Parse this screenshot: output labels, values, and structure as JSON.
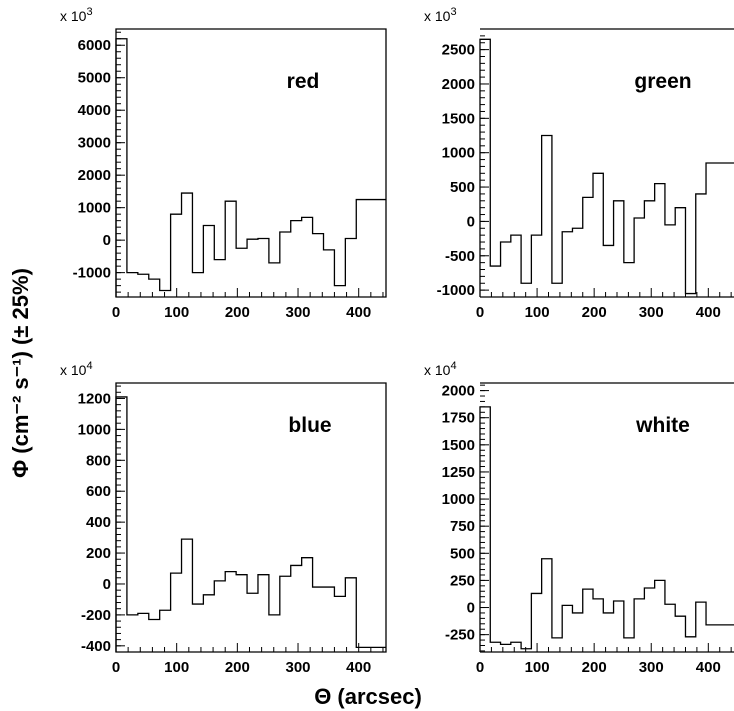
{
  "figure": {
    "xlabel": "Θ (arcsec)",
    "ylabel": "Φ (cm⁻² s⁻¹)  (± 25%)"
  },
  "chart_data": [
    {
      "type": "histogram",
      "label": "red",
      "scale": "x 10",
      "scale_exp": "3",
      "xlim": [
        0,
        445
      ],
      "ylim": [
        -1750,
        6500
      ],
      "xticks": [
        0,
        100,
        200,
        300,
        400
      ],
      "yticks": [
        -1000,
        0,
        1000,
        2000,
        3000,
        4000,
        5000,
        6000
      ],
      "bin_edges": [
        0,
        18,
        36,
        54,
        72,
        90,
        108,
        126,
        144,
        162,
        180,
        198,
        216,
        234,
        252,
        270,
        288,
        306,
        324,
        342,
        360,
        378,
        396,
        414,
        432,
        445
      ],
      "values": [
        6200,
        -1000,
        -1050,
        -1200,
        -1550,
        800,
        1450,
        -1000,
        450,
        -600,
        1200,
        -250,
        30,
        50,
        -700,
        250,
        600,
        700,
        200,
        -300,
        -1400,
        50,
        1250,
        1250,
        1250
      ]
    },
    {
      "type": "histogram",
      "label": "green",
      "scale": "x 10",
      "scale_exp": "3",
      "xlim": [
        0,
        445
      ],
      "ylim": [
        -1100,
        2800
      ],
      "xticks": [
        0,
        100,
        200,
        300,
        400
      ],
      "yticks": [
        -1000,
        -500,
        0,
        500,
        1000,
        1500,
        2000,
        2500
      ],
      "bin_edges": [
        0,
        18,
        36,
        54,
        72,
        90,
        108,
        126,
        144,
        162,
        180,
        198,
        216,
        234,
        252,
        270,
        288,
        306,
        324,
        342,
        360,
        378,
        396,
        414,
        432,
        445
      ],
      "values": [
        2650,
        -650,
        -300,
        -200,
        -900,
        -200,
        1250,
        -900,
        -150,
        -100,
        350,
        700,
        -350,
        300,
        -600,
        50,
        300,
        550,
        -50,
        200,
        -1050,
        400,
        850,
        850,
        850
      ]
    },
    {
      "type": "histogram",
      "label": "blue",
      "scale": "x 10",
      "scale_exp": "4",
      "xlim": [
        0,
        445
      ],
      "ylim": [
        -440,
        1300
      ],
      "xticks": [
        0,
        100,
        200,
        300,
        400
      ],
      "yticks": [
        -400,
        -200,
        0,
        200,
        400,
        600,
        800,
        1000,
        1200
      ],
      "bin_edges": [
        0,
        18,
        36,
        54,
        72,
        90,
        108,
        126,
        144,
        162,
        180,
        198,
        216,
        234,
        252,
        270,
        288,
        306,
        324,
        342,
        360,
        378,
        396,
        414,
        432,
        445
      ],
      "values": [
        1210,
        -200,
        -190,
        -230,
        -170,
        70,
        290,
        -130,
        -70,
        20,
        80,
        60,
        -60,
        60,
        -200,
        50,
        120,
        170,
        -20,
        -20,
        -80,
        40,
        -410,
        -410,
        -410
      ]
    },
    {
      "type": "histogram",
      "label": "white",
      "scale": "x 10",
      "scale_exp": "4",
      "xlim": [
        0,
        445
      ],
      "ylim": [
        -410,
        2070
      ],
      "xticks": [
        0,
        100,
        200,
        300,
        400
      ],
      "yticks": [
        -250,
        0,
        250,
        500,
        750,
        1000,
        1250,
        1500,
        1750,
        2000
      ],
      "bin_edges": [
        0,
        18,
        36,
        54,
        72,
        90,
        108,
        126,
        144,
        162,
        180,
        198,
        216,
        234,
        252,
        270,
        288,
        306,
        324,
        342,
        360,
        378,
        396,
        414,
        432,
        445
      ],
      "values": [
        1850,
        -320,
        -340,
        -320,
        -380,
        130,
        450,
        -280,
        20,
        -50,
        170,
        80,
        -50,
        60,
        -280,
        80,
        180,
        250,
        30,
        -80,
        -270,
        50,
        -160,
        -160,
        -160
      ]
    }
  ]
}
